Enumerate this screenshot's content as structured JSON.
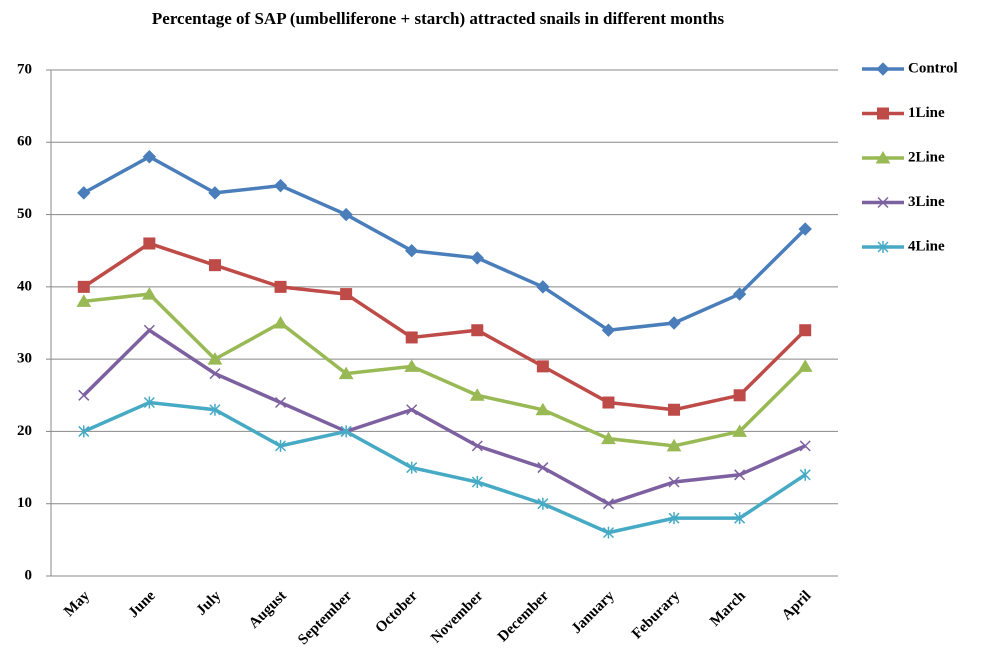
{
  "chart_data": {
    "type": "line",
    "title": "Percentage of SAP (umbelliferone + starch) attracted snails in different months",
    "categories": [
      "May",
      "June",
      "July",
      "August",
      "September",
      "October",
      "November",
      "December",
      "January",
      "Feburary",
      "March",
      "April"
    ],
    "series": [
      {
        "name": "Control",
        "color": "#4a7ebb",
        "marker": "diamond",
        "values": [
          53,
          58,
          53,
          54,
          50,
          45,
          44,
          40,
          34,
          35,
          39,
          48
        ]
      },
      {
        "name": "1Line",
        "color": "#be4b48",
        "marker": "square",
        "values": [
          40,
          46,
          43,
          40,
          39,
          33,
          34,
          29,
          24,
          23,
          25,
          34
        ]
      },
      {
        "name": "2Line",
        "color": "#98b954",
        "marker": "triangle",
        "values": [
          38,
          39,
          30,
          35,
          28,
          29,
          25,
          23,
          19,
          18,
          20,
          29
        ]
      },
      {
        "name": "3Line",
        "color": "#7d60a0",
        "marker": "x",
        "values": [
          25,
          34,
          28,
          24,
          20,
          23,
          18,
          15,
          10,
          13,
          14,
          18
        ]
      },
      {
        "name": "4Line",
        "color": "#46aac5",
        "marker": "asterisk",
        "values": [
          20,
          24,
          23,
          18,
          20,
          15,
          13,
          10,
          6,
          8,
          8,
          14
        ]
      }
    ],
    "ylim": [
      0,
      70
    ],
    "yticks": [
      0,
      10,
      20,
      30,
      40,
      50,
      60,
      70
    ],
    "grid": true,
    "legend": "right"
  }
}
